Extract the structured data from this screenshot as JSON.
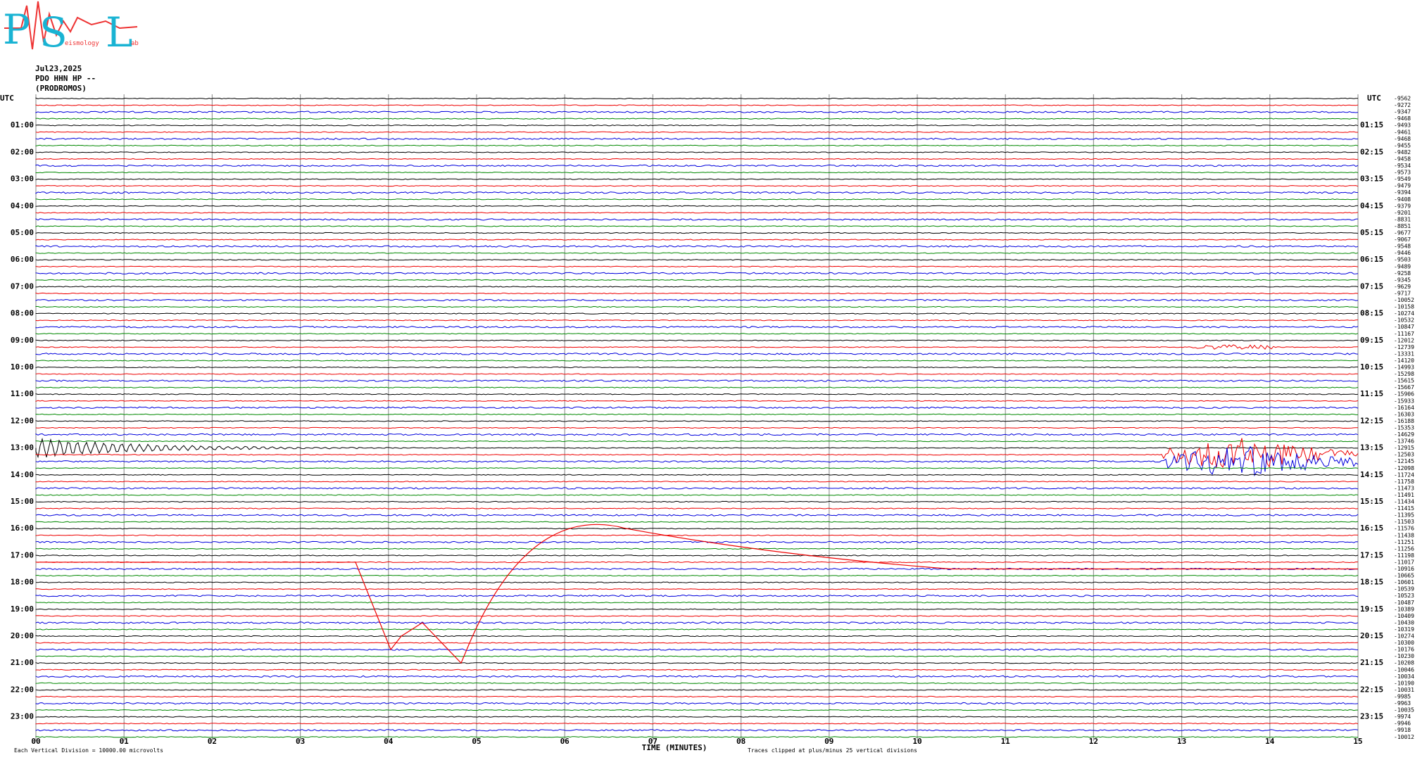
{
  "logo": {
    "letters": [
      "P",
      "S",
      "L"
    ],
    "words": [
      "eismology",
      "ab"
    ]
  },
  "header": {
    "date": "Jul23,2025",
    "station": "PDO HHN HP --",
    "location": "(PRODROMOS)"
  },
  "left_labels": [
    "UTC",
    "01:00",
    "02:00",
    "03:00",
    "04:00",
    "05:00",
    "06:00",
    "07:00",
    "08:00",
    "09:00",
    "10:00",
    "11:00",
    "12:00",
    "13:00",
    "14:00",
    "15:00",
    "16:00",
    "17:00",
    "18:00",
    "19:00",
    "20:00",
    "21:00",
    "22:00",
    "23:00"
  ],
  "right_labels": [
    "UTC",
    "01:15",
    "02:15",
    "03:15",
    "04:15",
    "05:15",
    "06:15",
    "07:15",
    "08:15",
    "09:15",
    "10:15",
    "11:15",
    "12:15",
    "13:15",
    "14:15",
    "15:15",
    "16:15",
    "17:15",
    "18:15",
    "19:15",
    "20:15",
    "21:15",
    "22:15",
    "23:15"
  ],
  "trace_offsets": [
    -9562,
    -9272,
    -9347,
    -9468,
    -9493,
    -9461,
    -9468,
    -9455,
    -9482,
    -9458,
    -9534,
    -9573,
    -9549,
    -9479,
    -9394,
    -9408,
    -9379,
    -9201,
    -8831,
    -8851,
    -9677,
    -9067,
    -9548,
    -9446,
    -9503,
    -9489,
    -9258,
    -9345,
    -9629,
    -9717,
    -10052,
    -10158,
    -10274,
    -10532,
    -10847,
    -11167,
    -12012,
    -12739,
    -13331,
    -14120,
    -14993,
    -15298,
    -15615,
    -15667,
    -15906,
    -15933,
    -16164,
    -16303,
    -16188,
    -15353,
    -14629,
    -13746,
    -12915,
    -12503,
    -12145,
    -12098,
    -11724,
    -11758,
    -11473,
    -11491,
    -11434,
    -11415,
    -11395,
    -11503,
    -11576,
    -11438,
    -11251,
    -11256,
    -11198,
    -11017,
    -10916,
    -10665,
    -10601,
    -10539,
    -10523,
    -10487,
    -10389,
    -10409,
    -10430,
    -10319,
    -10274,
    -10300,
    -10176,
    -10230,
    -10208,
    -10046,
    -10034,
    -10190,
    -10031,
    -9985,
    -9963,
    -10035,
    -9974,
    -9946,
    -9918,
    -10012
  ],
  "time_axis": {
    "ticks": [
      "00",
      "01",
      "02",
      "03",
      "04",
      "05",
      "06",
      "07",
      "08",
      "09",
      "10",
      "11",
      "12",
      "13",
      "14",
      "15"
    ],
    "title": "TIME (MINUTES)"
  },
  "footer": {
    "scale": "Each Vertical Division = 10000.00 microvolts",
    "clip": "Traces clipped at plus/minus 25 vertical divisions"
  }
}
